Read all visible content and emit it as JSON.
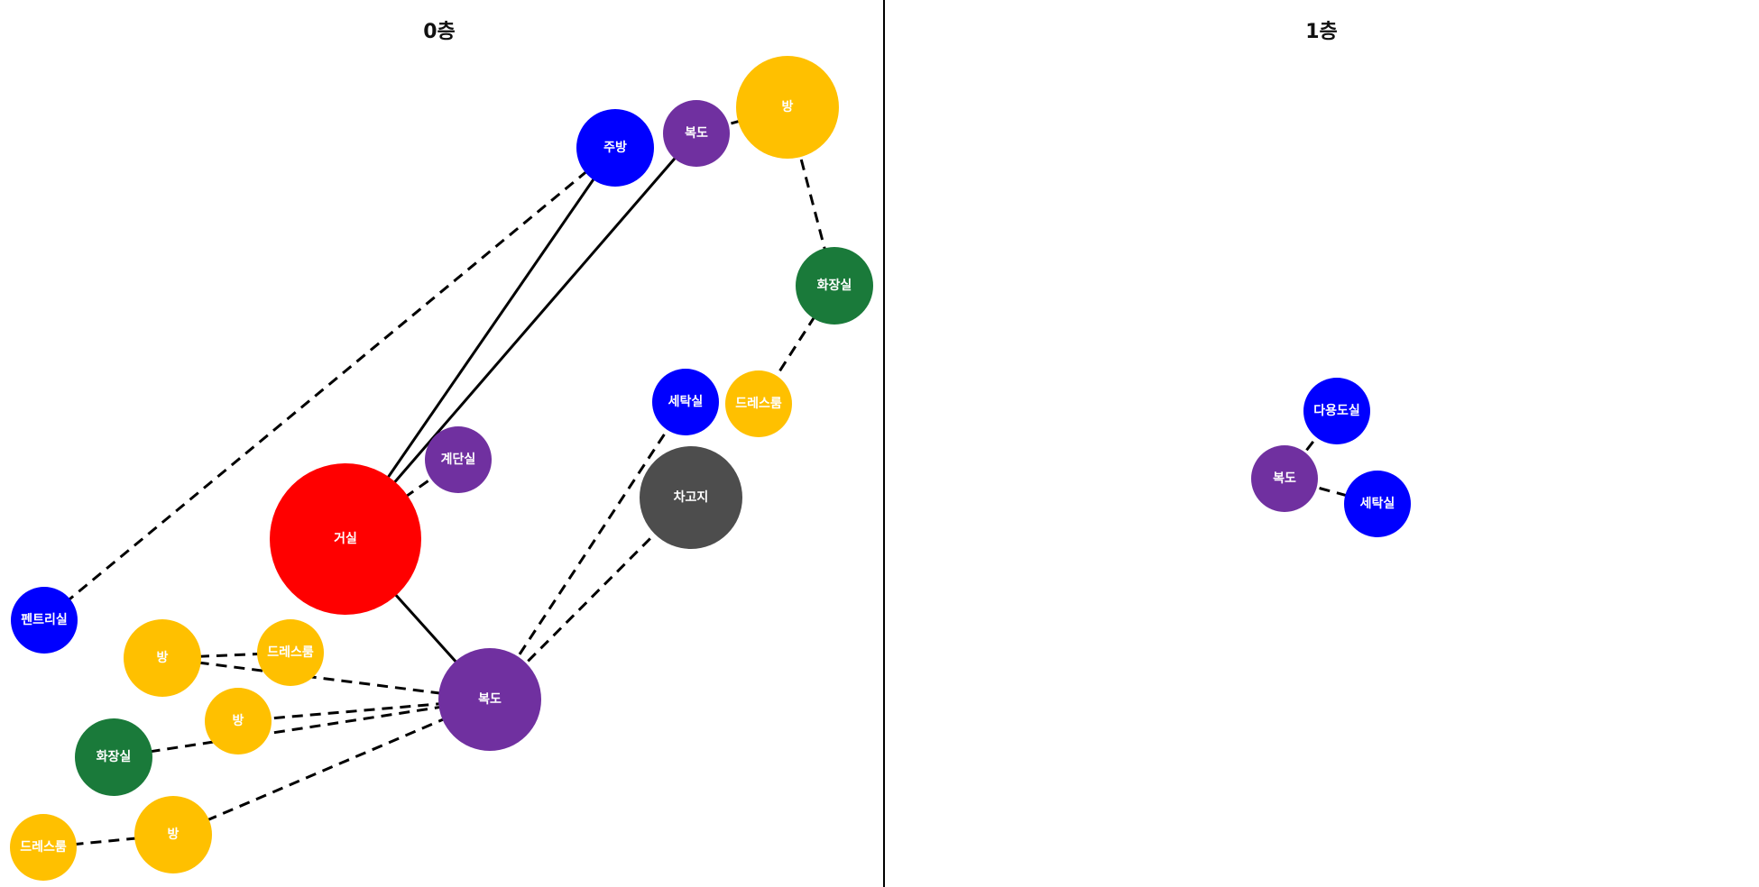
{
  "colors": {
    "living": "#ff0000",
    "room": "#ffc000",
    "blue_room": "#0000ff",
    "corridor": "#7030a0",
    "bathroom": "#1a7a3a",
    "garage": "#4d4d4d"
  },
  "floors": [
    {
      "id": "floor0",
      "title": "0층",
      "nodes": [
        {
          "id": "f0_living",
          "label": "거실",
          "color": "living",
          "size": "xl"
        },
        {
          "id": "f0_kitchen",
          "label": "주방",
          "color": "blue_room",
          "size": "m"
        },
        {
          "id": "f0_hall_top",
          "label": "복도",
          "color": "corridor",
          "size": "s"
        },
        {
          "id": "f0_room_top",
          "label": "방",
          "color": "room",
          "size": "l"
        },
        {
          "id": "f0_bath_right",
          "label": "화장실",
          "color": "bathroom",
          "size": "m"
        },
        {
          "id": "f0_laundry",
          "label": "세탁실",
          "color": "blue_room",
          "size": "s"
        },
        {
          "id": "f0_dress_right",
          "label": "드레스룸",
          "color": "room",
          "size": "s"
        },
        {
          "id": "f0_stairs",
          "label": "계단실",
          "color": "corridor",
          "size": "s"
        },
        {
          "id": "f0_garage",
          "label": "차고지",
          "color": "garage",
          "size": "l"
        },
        {
          "id": "f0_pantry",
          "label": "펜트리실",
          "color": "blue_room",
          "size": "s"
        },
        {
          "id": "f0_room_a",
          "label": "방",
          "color": "room",
          "size": "m"
        },
        {
          "id": "f0_dress_a",
          "label": "드레스룸",
          "color": "room",
          "size": "s"
        },
        {
          "id": "f0_hall_main",
          "label": "복도",
          "color": "corridor",
          "size": "l"
        },
        {
          "id": "f0_room_b",
          "label": "방",
          "color": "room",
          "size": "s"
        },
        {
          "id": "f0_bath_left",
          "label": "화장실",
          "color": "bathroom",
          "size": "m"
        },
        {
          "id": "f0_room_c",
          "label": "방",
          "color": "room",
          "size": "m"
        },
        {
          "id": "f0_dress_b",
          "label": "드레스룸",
          "color": "room",
          "size": "s"
        }
      ],
      "edges": [
        {
          "from": "f0_living",
          "to": "f0_kitchen",
          "style": "solid"
        },
        {
          "from": "f0_living",
          "to": "f0_hall_top",
          "style": "solid"
        },
        {
          "from": "f0_living",
          "to": "f0_hall_main",
          "style": "solid"
        },
        {
          "from": "f0_living",
          "to": "f0_stairs",
          "style": "dashed"
        },
        {
          "from": "f0_kitchen",
          "to": "f0_pantry",
          "style": "dashed"
        },
        {
          "from": "f0_hall_top",
          "to": "f0_room_top",
          "style": "dashed"
        },
        {
          "from": "f0_room_top",
          "to": "f0_bath_right",
          "style": "dashed"
        },
        {
          "from": "f0_bath_right",
          "to": "f0_dress_right",
          "style": "dashed"
        },
        {
          "from": "f0_hall_main",
          "to": "f0_laundry",
          "style": "dashed"
        },
        {
          "from": "f0_hall_main",
          "to": "f0_garage",
          "style": "dashed"
        },
        {
          "from": "f0_room_a",
          "to": "f0_dress_a",
          "style": "dashed"
        },
        {
          "from": "f0_room_a",
          "to": "f0_hall_main",
          "style": "dashed"
        },
        {
          "from": "f0_room_b",
          "to": "f0_hall_main",
          "style": "dashed"
        },
        {
          "from": "f0_bath_left",
          "to": "f0_hall_main",
          "style": "dashed"
        },
        {
          "from": "f0_room_c",
          "to": "f0_hall_main",
          "style": "dashed"
        },
        {
          "from": "f0_room_c",
          "to": "f0_dress_b",
          "style": "dashed"
        }
      ]
    },
    {
      "id": "floor1",
      "title": "1층",
      "nodes": [
        {
          "id": "f1_multi",
          "label": "다용도실",
          "color": "blue_room",
          "size": "s"
        },
        {
          "id": "f1_hall",
          "label": "복도",
          "color": "corridor",
          "size": "s"
        },
        {
          "id": "f1_laundry",
          "label": "세탁실",
          "color": "blue_room",
          "size": "s"
        }
      ],
      "edges": [
        {
          "from": "f1_hall",
          "to": "f1_multi",
          "style": "dashed"
        },
        {
          "from": "f1_hall",
          "to": "f1_laundry",
          "style": "dashed"
        }
      ]
    }
  ]
}
